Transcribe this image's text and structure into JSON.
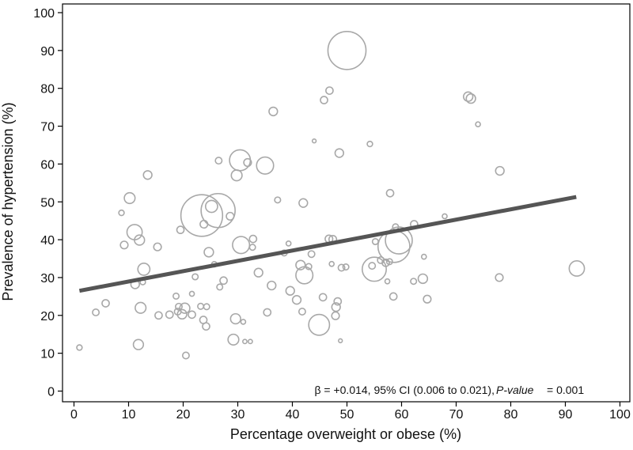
{
  "chart_data": {
    "type": "scatter",
    "xlabel": "Percentage overweight or obese (%)",
    "ylabel": "Prevalence of hypertension (%)",
    "xlim": [
      0,
      100
    ],
    "ylim": [
      0,
      100
    ],
    "xticks": [
      "0",
      "10",
      "20",
      "30",
      "40",
      "50",
      "60",
      "70",
      "80",
      "90",
      "100"
    ],
    "yticks": [
      "0",
      "10",
      "20",
      "30",
      "40",
      "50",
      "60",
      "70",
      "80",
      "90",
      "100"
    ],
    "grid": false,
    "bubble_sizes_relative": true,
    "points": [
      {
        "x": 1,
        "y": 11.5,
        "s": 1
      },
      {
        "x": 4,
        "y": 20.8,
        "s": 1.5
      },
      {
        "x": 5.8,
        "y": 23.2,
        "s": 1.8
      },
      {
        "x": 8.7,
        "y": 47.1,
        "s": 1
      },
      {
        "x": 9.2,
        "y": 38.6,
        "s": 2
      },
      {
        "x": 10.2,
        "y": 51,
        "s": 4
      },
      {
        "x": 11.1,
        "y": 42,
        "s": 8
      },
      {
        "x": 11.2,
        "y": 28.2,
        "s": 2.5
      },
      {
        "x": 11.8,
        "y": 12.3,
        "s": 3.5
      },
      {
        "x": 12.2,
        "y": 22,
        "s": 4
      },
      {
        "x": 12,
        "y": 39.9,
        "s": 3.5
      },
      {
        "x": 12.6,
        "y": 28.8,
        "s": 1
      },
      {
        "x": 12.8,
        "y": 32.2,
        "s": 5
      },
      {
        "x": 13.5,
        "y": 57.1,
        "s": 2.5
      },
      {
        "x": 15.3,
        "y": 38.1,
        "s": 2
      },
      {
        "x": 15.5,
        "y": 20,
        "s": 1.8
      },
      {
        "x": 17.5,
        "y": 20.2,
        "s": 1.8
      },
      {
        "x": 18.7,
        "y": 25.1,
        "s": 1.2
      },
      {
        "x": 19,
        "y": 21,
        "s": 1.5
      },
      {
        "x": 19.2,
        "y": 22.3,
        "s": 1.5
      },
      {
        "x": 19.5,
        "y": 42.6,
        "s": 1.8
      },
      {
        "x": 19.8,
        "y": 20.3,
        "s": 3
      },
      {
        "x": 20.3,
        "y": 21.9,
        "s": 3.5
      },
      {
        "x": 20.5,
        "y": 9.4,
        "s": 1.5
      },
      {
        "x": 21.6,
        "y": 25.7,
        "s": 0.8
      },
      {
        "x": 21.6,
        "y": 20.2,
        "s": 1.8
      },
      {
        "x": 22.2,
        "y": 30.2,
        "s": 1.2
      },
      {
        "x": 23.2,
        "y": 22.4,
        "s": 1.2
      },
      {
        "x": 23.4,
        "y": 46.4,
        "s": 60
      },
      {
        "x": 23.7,
        "y": 18.8,
        "s": 1.8
      },
      {
        "x": 23.8,
        "y": 44.1,
        "s": 2
      },
      {
        "x": 24.2,
        "y": 17.1,
        "s": 1.8
      },
      {
        "x": 24.3,
        "y": 22.3,
        "s": 1.2
      },
      {
        "x": 24.7,
        "y": 36.7,
        "s": 3
      },
      {
        "x": 25.2,
        "y": 48.8,
        "s": 5
      },
      {
        "x": 25.7,
        "y": 33.5,
        "s": 1
      },
      {
        "x": 26.4,
        "y": 47.7,
        "s": 40
      },
      {
        "x": 26.5,
        "y": 60.9,
        "s": 1.5
      },
      {
        "x": 26.7,
        "y": 27.5,
        "s": 1.2
      },
      {
        "x": 27.4,
        "y": 29.2,
        "s": 1.8
      },
      {
        "x": 28.6,
        "y": 46.2,
        "s": 2
      },
      {
        "x": 29.2,
        "y": 13.6,
        "s": 4
      },
      {
        "x": 29.6,
        "y": 19.1,
        "s": 3.5
      },
      {
        "x": 29.8,
        "y": 57,
        "s": 4
      },
      {
        "x": 30.4,
        "y": 61,
        "s": 15
      },
      {
        "x": 30.6,
        "y": 38.6,
        "s": 10
      },
      {
        "x": 31,
        "y": 18.3,
        "s": 0.8
      },
      {
        "x": 31.3,
        "y": 13.1,
        "s": 0.6
      },
      {
        "x": 31.8,
        "y": 60.4,
        "s": 2
      },
      {
        "x": 32.3,
        "y": 13.1,
        "s": 0.6
      },
      {
        "x": 32.7,
        "y": 38,
        "s": 1.2
      },
      {
        "x": 32.8,
        "y": 40.2,
        "s": 1.8
      },
      {
        "x": 33.8,
        "y": 31.3,
        "s": 2.5
      },
      {
        "x": 35,
        "y": 59.6,
        "s": 10
      },
      {
        "x": 35.4,
        "y": 20.8,
        "s": 1.8
      },
      {
        "x": 36.2,
        "y": 27.9,
        "s": 2.5
      },
      {
        "x": 36.5,
        "y": 73.9,
        "s": 2.5
      },
      {
        "x": 37.3,
        "y": 50.5,
        "s": 1.2
      },
      {
        "x": 38.5,
        "y": 36.5,
        "s": 1.2
      },
      {
        "x": 39.3,
        "y": 39,
        "s": 0.8
      },
      {
        "x": 39.6,
        "y": 26.5,
        "s": 2.5
      },
      {
        "x": 40.8,
        "y": 24.1,
        "s": 2.5
      },
      {
        "x": 41.5,
        "y": 33.3,
        "s": 3
      },
      {
        "x": 41.8,
        "y": 21,
        "s": 1.5
      },
      {
        "x": 42,
        "y": 49.7,
        "s": 2.5
      },
      {
        "x": 42.2,
        "y": 30.6,
        "s": 10
      },
      {
        "x": 43,
        "y": 32.9,
        "s": 1.2
      },
      {
        "x": 43.5,
        "y": 36.2,
        "s": 1.5
      },
      {
        "x": 44,
        "y": 66.1,
        "s": 0.5
      },
      {
        "x": 44.9,
        "y": 17.5,
        "s": 15
      },
      {
        "x": 45.6,
        "y": 24.8,
        "s": 1.8
      },
      {
        "x": 45.8,
        "y": 76.9,
        "s": 1.8
      },
      {
        "x": 46.7,
        "y": 40.2,
        "s": 2
      },
      {
        "x": 46.8,
        "y": 79.4,
        "s": 1.8
      },
      {
        "x": 47.2,
        "y": 33.6,
        "s": 0.8
      },
      {
        "x": 47.4,
        "y": 40.1,
        "s": 2
      },
      {
        "x": 47.9,
        "y": 19.9,
        "s": 2
      },
      {
        "x": 48,
        "y": 22.2,
        "s": 2.5
      },
      {
        "x": 48.3,
        "y": 23.7,
        "s": 1.8
      },
      {
        "x": 48.6,
        "y": 62.9,
        "s": 2.5
      },
      {
        "x": 48.8,
        "y": 13.3,
        "s": 0.5
      },
      {
        "x": 49,
        "y": 32.6,
        "s": 1.5
      },
      {
        "x": 49.8,
        "y": 32.8,
        "s": 1.2
      },
      {
        "x": 50,
        "y": 90,
        "s": 50
      },
      {
        "x": 54.2,
        "y": 65.3,
        "s": 1
      },
      {
        "x": 54.6,
        "y": 33.1,
        "s": 1.5
      },
      {
        "x": 55,
        "y": 32.2,
        "s": 20
      },
      {
        "x": 55.2,
        "y": 39.5,
        "s": 1.2
      },
      {
        "x": 56.2,
        "y": 34.6,
        "s": 1.5
      },
      {
        "x": 57.1,
        "y": 33.9,
        "s": 1.8
      },
      {
        "x": 57.4,
        "y": 29,
        "s": 0.8
      },
      {
        "x": 57.8,
        "y": 34.2,
        "s": 1.2
      },
      {
        "x": 57.9,
        "y": 52.3,
        "s": 1.8
      },
      {
        "x": 58.5,
        "y": 25,
        "s": 1.8
      },
      {
        "x": 58.6,
        "y": 38.2,
        "s": 35
      },
      {
        "x": 58.9,
        "y": 43.4,
        "s": 1.2
      },
      {
        "x": 59.5,
        "y": 39.8,
        "s": 25
      },
      {
        "x": 62.2,
        "y": 29,
        "s": 1.2
      },
      {
        "x": 62.3,
        "y": 44.1,
        "s": 1.8
      },
      {
        "x": 63.9,
        "y": 29.7,
        "s": 3
      },
      {
        "x": 64.1,
        "y": 35.5,
        "s": 0.8
      },
      {
        "x": 64.7,
        "y": 24.3,
        "s": 2
      },
      {
        "x": 67.9,
        "y": 46.2,
        "s": 0.8
      },
      {
        "x": 72.2,
        "y": 77.8,
        "s": 3
      },
      {
        "x": 72.7,
        "y": 77.3,
        "s": 3
      },
      {
        "x": 74,
        "y": 70.5,
        "s": 0.8
      },
      {
        "x": 77.9,
        "y": 30,
        "s": 2
      },
      {
        "x": 78,
        "y": 58.2,
        "s": 2.5
      },
      {
        "x": 92.1,
        "y": 32.4,
        "s": 8
      }
    ],
    "series": [
      {
        "type": "line",
        "x": [
          1,
          92
        ],
        "y": [
          26.5,
          51.3
        ]
      }
    ],
    "annotation": {
      "beta": "β = +0.014, 95% CI (0.006 to 0.021),",
      "pvalue_label": "P-value",
      "pvalue": "= 0.001"
    },
    "colors": {
      "bubble": "#a8a8a8",
      "fit_line": "#555555",
      "axis": "#000000"
    }
  }
}
